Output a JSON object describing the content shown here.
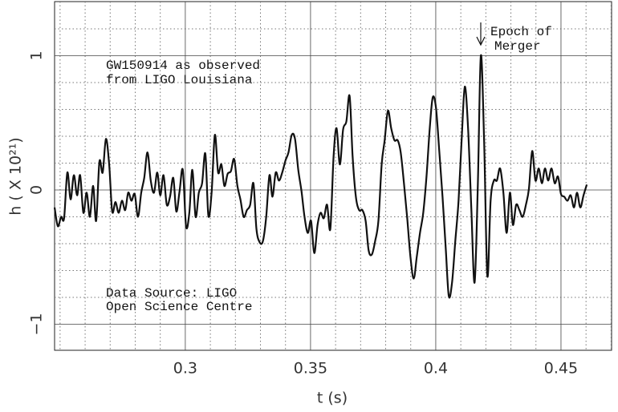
{
  "chart_data": {
    "type": "line",
    "xlabel": "t (s)",
    "ylabel": "h ( X 10²¹)",
    "annotations": [
      "GW150914 as observed",
      "from LIGO Louisiana",
      "Data Source: LIGO",
      "Open Science Centre",
      "Epoch of",
      "Merger"
    ],
    "xlim": [
      0.2478,
      0.4702
    ],
    "ylim": [
      -1.194,
      1.403
    ],
    "xticks": [
      0.3,
      0.35,
      0.4,
      0.45
    ],
    "yticks": [
      {
        "value": -1,
        "label": "−1"
      },
      0,
      1
    ],
    "x_minor_ticks": [
      0.25,
      0.26,
      0.27,
      0.28,
      0.29,
      0.31,
      0.32,
      0.33,
      0.34,
      0.36,
      0.37,
      0.38,
      0.39,
      0.41,
      0.42,
      0.43,
      0.44,
      0.46,
      0.47
    ],
    "y_minor_ticks": [
      -0.8,
      -0.6,
      -0.4,
      -0.2,
      0.2,
      0.4,
      0.6,
      0.8,
      1.2
    ],
    "grid": true,
    "color": "#111111",
    "x": [
      0.2478,
      0.2491,
      0.2504,
      0.2516,
      0.2529,
      0.2542,
      0.2555,
      0.2568,
      0.258,
      0.2593,
      0.2606,
      0.2619,
      0.2632,
      0.2644,
      0.2657,
      0.267,
      0.2683,
      0.2696,
      0.2708,
      0.2721,
      0.2734,
      0.2747,
      0.276,
      0.2772,
      0.2785,
      0.2798,
      0.2811,
      0.2824,
      0.2836,
      0.2849,
      0.2862,
      0.2875,
      0.2888,
      0.29,
      0.2913,
      0.2926,
      0.2939,
      0.2952,
      0.2964,
      0.2977,
      0.299,
      0.3003,
      0.3016,
      0.3028,
      0.3041,
      0.3054,
      0.3067,
      0.308,
      0.3092,
      0.3105,
      0.3118,
      0.3131,
      0.3144,
      0.3156,
      0.3169,
      0.3182,
      0.3195,
      0.3208,
      0.322,
      0.3233,
      0.3246,
      0.3259,
      0.3272,
      0.3284,
      0.3297,
      0.331,
      0.3323,
      0.3336,
      0.3348,
      0.3361,
      0.3374,
      0.3387,
      0.34,
      0.3412,
      0.3425,
      0.3438,
      0.3451,
      0.3464,
      0.3476,
      0.3489,
      0.3502,
      0.3515,
      0.3528,
      0.354,
      0.3553,
      0.3566,
      0.3579,
      0.3592,
      0.3604,
      0.3617,
      0.363,
      0.3643,
      0.3656,
      0.3668,
      0.3681,
      0.3694,
      0.3707,
      0.372,
      0.3732,
      0.3745,
      0.3758,
      0.3771,
      0.3784,
      0.3796,
      0.3809,
      0.3822,
      0.3835,
      0.3848,
      0.386,
      0.3873,
      0.3886,
      0.3899,
      0.3912,
      0.3924,
      0.3937,
      0.395,
      0.3963,
      0.3976,
      0.3988,
      0.4001,
      0.4014,
      0.4027,
      0.404,
      0.4052,
      0.4065,
      0.4078,
      0.4091,
      0.4104,
      0.4116,
      0.4129,
      0.4142,
      0.4155,
      0.4168,
      0.418,
      0.4193,
      0.4206,
      0.4219,
      0.4232,
      0.4244,
      0.4257,
      0.427,
      0.4283,
      0.4296,
      0.4308,
      0.4321,
      0.4334,
      0.4347,
      0.436,
      0.4372,
      0.4385,
      0.4398,
      0.4411,
      0.4424,
      0.4436,
      0.4449,
      0.4462,
      0.4475,
      0.4488,
      0.45,
      0.4513,
      0.4526,
      0.4539,
      0.4552,
      0.4564,
      0.4577,
      0.459,
      0.4603
    ],
    "values": [
      -0.13,
      -0.27,
      -0.2,
      -0.21,
      0.13,
      -0.07,
      0.11,
      -0.04,
      0.11,
      -0.17,
      -0.02,
      -0.2,
      0.03,
      -0.23,
      0.21,
      0.13,
      0.38,
      0.19,
      -0.16,
      -0.09,
      -0.17,
      -0.08,
      -0.15,
      -0.02,
      -0.08,
      -0.03,
      -0.2,
      -0.02,
      0.09,
      0.28,
      0.07,
      -0.02,
      0.13,
      -0.04,
      0.11,
      -0.11,
      -0.05,
      0.09,
      -0.16,
      -0.01,
      0.15,
      -0.27,
      -0.17,
      0.15,
      -0.2,
      -0.02,
      0.05,
      0.27,
      -0.19,
      -0.02,
      0.41,
      0.13,
      0.19,
      0.03,
      0.12,
      0.14,
      0.23,
      0.03,
      -0.07,
      -0.2,
      -0.15,
      -0.11,
      0.05,
      -0.29,
      -0.39,
      -0.38,
      -0.2,
      0.11,
      -0.05,
      0.13,
      0.07,
      0.13,
      0.22,
      0.28,
      0.41,
      0.38,
      0.15,
      -0.01,
      -0.2,
      -0.32,
      -0.23,
      -0.47,
      -0.26,
      -0.17,
      -0.21,
      -0.11,
      -0.29,
      0.25,
      0.46,
      0.19,
      0.45,
      0.51,
      0.7,
      0.25,
      -0.05,
      -0.15,
      -0.15,
      -0.23,
      -0.45,
      -0.48,
      -0.38,
      -0.23,
      0.19,
      0.37,
      0.59,
      0.46,
      0.37,
      0.37,
      0.28,
      0.05,
      -0.21,
      -0.5,
      -0.66,
      -0.5,
      -0.32,
      -0.17,
      0.1,
      0.46,
      0.69,
      0.61,
      0.29,
      -0.05,
      -0.44,
      -0.79,
      -0.69,
      -0.38,
      -0.08,
      0.4,
      0.77,
      0.46,
      -0.14,
      -0.69,
      0.04,
      1.0,
      0.37,
      -0.64,
      -0.08,
      0.07,
      0.07,
      0.16,
      -0.02,
      -0.32,
      -0.02,
      -0.26,
      -0.11,
      -0.15,
      -0.2,
      -0.11,
      0.01,
      0.29,
      0.07,
      0.16,
      0.05,
      0.16,
      0.07,
      0.16,
      0.05,
      0.1,
      -0.03,
      -0.05,
      -0.08,
      -0.04,
      -0.13,
      -0.02,
      -0.13,
      -0.04,
      0.04
    ]
  }
}
